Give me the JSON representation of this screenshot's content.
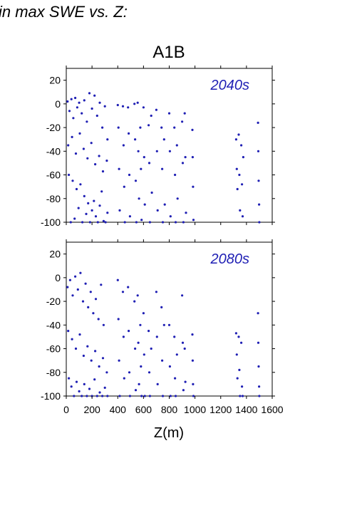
{
  "page": {
    "title": "in max SWE vs. Z:"
  },
  "colors": {
    "points": "#1f1fb4",
    "axis": "#000000"
  },
  "chart_data": [
    {
      "type": "scatter",
      "scenario": "A1B",
      "panel_label": "2040s",
      "xlabel": "Z(m)",
      "ylabel": "",
      "xlim": [
        0,
        1600
      ],
      "ylim": [
        -100,
        30
      ],
      "xticks": [
        0,
        200,
        400,
        600,
        800,
        1000,
        1200,
        1400,
        1600
      ],
      "yticks": [
        20,
        0,
        -20,
        -40,
        -60,
        -80,
        -100
      ],
      "x_tick_labels_shown": false,
      "series": [
        {
          "points": [
            [
              10,
              2
            ],
            [
              25,
              -6
            ],
            [
              40,
              4
            ],
            [
              55,
              -12
            ],
            [
              70,
              5
            ],
            [
              85,
              -3
            ],
            [
              100,
              1
            ],
            [
              120,
              -8
            ],
            [
              140,
              3
            ],
            [
              160,
              -15
            ],
            [
              180,
              9
            ],
            [
              200,
              -4
            ],
            [
              220,
              7
            ],
            [
              240,
              -10
            ],
            [
              260,
              1
            ],
            [
              280,
              -20
            ],
            [
              300,
              -2
            ],
            [
              320,
              -30
            ],
            [
              15,
              -35
            ],
            [
              45,
              -28
            ],
            [
              75,
              -42
            ],
            [
              105,
              -25
            ],
            [
              135,
              -38
            ],
            [
              165,
              -46
            ],
            [
              195,
              -33
            ],
            [
              225,
              -51
            ],
            [
              255,
              -44
            ],
            [
              285,
              -57
            ],
            [
              315,
              -48
            ],
            [
              20,
              -60
            ],
            [
              50,
              -65
            ],
            [
              80,
              -72
            ],
            [
              110,
              -68
            ],
            [
              140,
              -78
            ],
            [
              170,
              -84
            ],
            [
              200,
              -90
            ],
            [
              230,
              -95
            ],
            [
              260,
              -86
            ],
            [
              290,
              -99
            ],
            [
              320,
              -92
            ],
            [
              35,
              -100
            ],
            [
              65,
              -97
            ],
            [
              95,
              -88
            ],
            [
              125,
              -100
            ],
            [
              155,
              -93
            ],
            [
              185,
              -100
            ],
            [
              215,
              -82
            ],
            [
              245,
              -100
            ],
            [
              275,
              -74
            ],
            [
              305,
              -100
            ],
            [
              400,
              -1
            ],
            [
              405,
              -20
            ],
            [
              410,
              -55
            ],
            [
              415,
              -90
            ],
            [
              440,
              -2
            ],
            [
              445,
              -35
            ],
            [
              450,
              -70
            ],
            [
              455,
              -100
            ],
            [
              480,
              -3
            ],
            [
              485,
              -25
            ],
            [
              490,
              -60
            ],
            [
              495,
              -95
            ],
            [
              530,
              0
            ],
            [
              535,
              -30
            ],
            [
              540,
              -65
            ],
            [
              545,
              -100
            ],
            [
              555,
              1
            ],
            [
              560,
              -40
            ],
            [
              565,
              -80
            ],
            [
              575,
              -20
            ],
            [
              580,
              -55
            ],
            [
              585,
              -98
            ],
            [
              600,
              -3
            ],
            [
              605,
              -45
            ],
            [
              610,
              -85
            ],
            [
              640,
              -18
            ],
            [
              645,
              -50
            ],
            [
              650,
              -100
            ],
            [
              660,
              -10
            ],
            [
              665,
              -75
            ],
            [
              700,
              -5
            ],
            [
              705,
              -40
            ],
            [
              710,
              -90
            ],
            [
              740,
              -20
            ],
            [
              745,
              -55
            ],
            [
              750,
              -100
            ],
            [
              760,
              -30
            ],
            [
              765,
              -85
            ],
            [
              800,
              -8
            ],
            [
              805,
              -40
            ],
            [
              810,
              -95
            ],
            [
              840,
              -20
            ],
            [
              845,
              -60
            ],
            [
              850,
              -100
            ],
            [
              860,
              -35
            ],
            [
              865,
              -80
            ],
            [
              900,
              -15
            ],
            [
              905,
              -50
            ],
            [
              910,
              -100
            ],
            [
              920,
              -8
            ],
            [
              925,
              -45
            ],
            [
              930,
              -92
            ],
            [
              980,
              -22
            ],
            [
              982,
              -45
            ],
            [
              985,
              -70
            ],
            [
              988,
              -98
            ],
            [
              1320,
              -30
            ],
            [
              1325,
              -55
            ],
            [
              1330,
              -72
            ],
            [
              1340,
              -26
            ],
            [
              1345,
              -60
            ],
            [
              1350,
              -90
            ],
            [
              1360,
              -35
            ],
            [
              1365,
              -68
            ],
            [
              1370,
              -95
            ],
            [
              1375,
              -45
            ],
            [
              1490,
              -16
            ],
            [
              1492,
              -40
            ],
            [
              1495,
              -65
            ],
            [
              1498,
              -85
            ],
            [
              1500,
              -100
            ]
          ]
        }
      ]
    },
    {
      "type": "scatter",
      "scenario": "A1B",
      "panel_label": "2080s",
      "xlabel": "Z(m)",
      "ylabel": "",
      "xlim": [
        0,
        1600
      ],
      "ylim": [
        -100,
        30
      ],
      "xticks": [
        0,
        200,
        400,
        600,
        800,
        1000,
        1200,
        1400,
        1600
      ],
      "yticks": [
        20,
        0,
        -20,
        -40,
        -60,
        -80,
        -100
      ],
      "x_tick_labels_shown": true,
      "series": [
        {
          "points": [
            [
              10,
              -8
            ],
            [
              30,
              -2
            ],
            [
              50,
              -15
            ],
            [
              70,
              1
            ],
            [
              90,
              -10
            ],
            [
              110,
              4
            ],
            [
              130,
              -20
            ],
            [
              150,
              -5
            ],
            [
              170,
              -25
            ],
            [
              190,
              -12
            ],
            [
              210,
              -30
            ],
            [
              230,
              -18
            ],
            [
              250,
              -35
            ],
            [
              270,
              -6
            ],
            [
              290,
              -40
            ],
            [
              15,
              -45
            ],
            [
              45,
              -52
            ],
            [
              75,
              -60
            ],
            [
              105,
              -48
            ],
            [
              135,
              -66
            ],
            [
              165,
              -58
            ],
            [
              195,
              -70
            ],
            [
              225,
              -62
            ],
            [
              255,
              -75
            ],
            [
              285,
              -68
            ],
            [
              315,
              -80
            ],
            [
              20,
              -85
            ],
            [
              40,
              -92
            ],
            [
              60,
              -100
            ],
            [
              80,
              -88
            ],
            [
              100,
              -96
            ],
            [
              120,
              -100
            ],
            [
              140,
              -90
            ],
            [
              160,
              -100
            ],
            [
              180,
              -94
            ],
            [
              200,
              -100
            ],
            [
              220,
              -86
            ],
            [
              240,
              -100
            ],
            [
              260,
              -97
            ],
            [
              280,
              -100
            ],
            [
              300,
              -93
            ],
            [
              320,
              -100
            ],
            [
              400,
              -2
            ],
            [
              405,
              -35
            ],
            [
              410,
              -70
            ],
            [
              415,
              -100
            ],
            [
              440,
              -12
            ],
            [
              445,
              -50
            ],
            [
              450,
              -85
            ],
            [
              480,
              -8
            ],
            [
              485,
              -45
            ],
            [
              490,
              -80
            ],
            [
              495,
              -100
            ],
            [
              530,
              -20
            ],
            [
              535,
              -60
            ],
            [
              540,
              -95
            ],
            [
              555,
              -15
            ],
            [
              560,
              -55
            ],
            [
              565,
              -90
            ],
            [
              575,
              -40
            ],
            [
              580,
              -75
            ],
            [
              585,
              -100
            ],
            [
              600,
              -30
            ],
            [
              605,
              -65
            ],
            [
              610,
              -100
            ],
            [
              640,
              -45
            ],
            [
              645,
              -80
            ],
            [
              650,
              -100
            ],
            [
              660,
              -60
            ],
            [
              700,
              -12
            ],
            [
              705,
              -50
            ],
            [
              710,
              -90
            ],
            [
              740,
              -25
            ],
            [
              745,
              -70
            ],
            [
              750,
              -100
            ],
            [
              760,
              -40
            ],
            [
              800,
              -40
            ],
            [
              805,
              -75
            ],
            [
              810,
              -100
            ],
            [
              840,
              -50
            ],
            [
              845,
              -85
            ],
            [
              850,
              -100
            ],
            [
              860,
              -65
            ],
            [
              900,
              -15
            ],
            [
              905,
              -55
            ],
            [
              910,
              -95
            ],
            [
              920,
              -60
            ],
            [
              925,
              -88
            ],
            [
              980,
              -48
            ],
            [
              982,
              -70
            ],
            [
              985,
              -90
            ],
            [
              988,
              -100
            ],
            [
              1320,
              -47
            ],
            [
              1325,
              -65
            ],
            [
              1330,
              -85
            ],
            [
              1340,
              -50
            ],
            [
              1345,
              -78
            ],
            [
              1350,
              -100
            ],
            [
              1360,
              -55
            ],
            [
              1365,
              -92
            ],
            [
              1370,
              -100
            ],
            [
              1490,
              -30
            ],
            [
              1492,
              -55
            ],
            [
              1495,
              -75
            ],
            [
              1498,
              -92
            ],
            [
              1500,
              -100
            ]
          ]
        }
      ]
    }
  ]
}
